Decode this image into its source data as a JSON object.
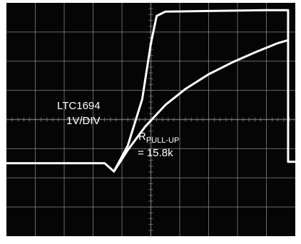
{
  "chart_data": {
    "type": "line",
    "title": "",
    "xlabel": "",
    "ylabel": "",
    "grid": true,
    "grid_divisions": {
      "x": 10,
      "y": 8
    },
    "xlim": [
      0,
      10
    ],
    "ylim": [
      0,
      8
    ],
    "series": [
      {
        "color": "#ffffff",
        "points": [
          [
            0.0,
            2.5
          ],
          [
            3.4,
            2.5
          ],
          [
            3.72,
            2.22
          ],
          [
            4.2,
            3.1
          ],
          [
            4.7,
            4.7
          ],
          [
            5.0,
            6.6
          ],
          [
            5.2,
            7.55
          ],
          [
            5.5,
            7.7
          ],
          [
            7.0,
            7.72
          ],
          [
            9.0,
            7.75
          ],
          [
            9.75,
            7.75
          ],
          [
            9.75,
            2.55
          ],
          [
            10.0,
            2.55
          ]
        ]
      },
      {
        "color": "#ffffff",
        "points": [
          [
            3.72,
            2.22
          ],
          [
            4.2,
            2.95
          ],
          [
            4.8,
            3.75
          ],
          [
            5.5,
            4.5
          ],
          [
            6.2,
            5.05
          ],
          [
            7.0,
            5.55
          ],
          [
            7.8,
            5.95
          ],
          [
            8.6,
            6.3
          ],
          [
            9.4,
            6.62
          ],
          [
            9.75,
            6.72
          ]
        ]
      }
    ],
    "annotations": {
      "part": "LTC1694",
      "scale": "1V/DIV",
      "r_main": "R",
      "r_sub": "PULL-UP",
      "r_value": "= 15.8k"
    }
  },
  "colors": {
    "background": "#050505",
    "grid": "#8a8a8a",
    "trace": "#ffffff",
    "frame": "#ffffff"
  }
}
